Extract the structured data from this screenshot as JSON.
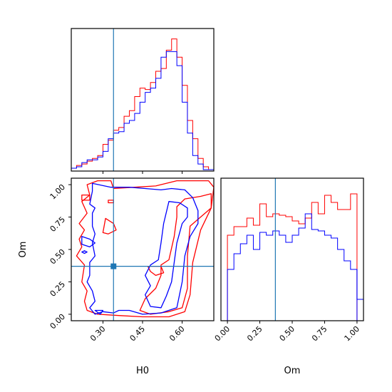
{
  "chart_data": [
    {
      "panel": "H0-marginal",
      "type": "histogram",
      "xlim": [
        0.18,
        0.72
      ],
      "bin_edges": [
        0.18,
        0.2,
        0.22,
        0.24,
        0.26,
        0.28,
        0.3,
        0.32,
        0.34,
        0.36,
        0.38,
        0.4,
        0.42,
        0.44,
        0.46,
        0.48,
        0.5,
        0.52,
        0.54,
        0.56,
        0.58,
        0.6,
        0.62,
        0.64,
        0.66,
        0.68,
        0.7,
        0.72
      ],
      "series": [
        {
          "color": "#ff0000",
          "values": [
            1,
            3,
            4,
            6,
            8,
            10,
            18,
            21,
            28,
            30,
            38,
            42,
            52,
            58,
            57,
            62,
            70,
            72,
            85,
            93,
            80,
            60,
            35,
            22,
            8,
            2,
            0
          ]
        },
        {
          "color": "#0000ff",
          "values": [
            1,
            2,
            5,
            7,
            7,
            9,
            13,
            22,
            26,
            27,
            33,
            35,
            40,
            48,
            55,
            58,
            65,
            80,
            84,
            84,
            74,
            48,
            26,
            10,
            4,
            0,
            0
          ]
        }
      ],
      "truth_line_x": 0.34,
      "truth_color": "#1f77b4",
      "x_ticks": [
        0.3,
        0.45,
        0.6
      ]
    },
    {
      "panel": "H0-Om-joint",
      "type": "contour",
      "xlim": [
        0.18,
        0.72
      ],
      "ylim": [
        -0.05,
        1.05
      ],
      "xlabel": "H0",
      "ylabel": "Om",
      "x_ticks": [
        "0.30",
        "0.45",
        "0.60"
      ],
      "y_ticks": [
        "0.00",
        "0.25",
        "0.50",
        "0.75",
        "1.00"
      ],
      "x_tick_values": [
        0.3,
        0.45,
        0.6
      ],
      "y_tick_values": [
        0,
        0.25,
        0.5,
        0.75,
        1.0
      ],
      "truth_point": [
        0.34,
        0.37
      ],
      "truth_color": "#1f77b4",
      "contours": [
        {
          "color": "#ff0000",
          "points": [
            [
              0.28,
              1.03
            ],
            [
              0.33,
              1.03
            ],
            [
              0.34,
              0.97
            ],
            [
              0.42,
              0.98
            ],
            [
              0.5,
              0.99
            ],
            [
              0.58,
              1.03
            ],
            [
              0.7,
              1.03
            ],
            [
              0.72,
              0.98
            ],
            [
              0.71,
              0.82
            ],
            [
              0.67,
              0.65
            ],
            [
              0.64,
              0.4
            ],
            [
              0.63,
              0.15
            ],
            [
              0.61,
              0.02
            ],
            [
              0.55,
              -0.02
            ],
            [
              0.45,
              -0.02
            ],
            [
              0.36,
              -0.01
            ],
            [
              0.28,
              0.0
            ],
            [
              0.24,
              0.03
            ],
            [
              0.23,
              0.1
            ],
            [
              0.24,
              0.18
            ],
            [
              0.22,
              0.25
            ],
            [
              0.23,
              0.38
            ],
            [
              0.2,
              0.45
            ],
            [
              0.22,
              0.52
            ],
            [
              0.21,
              0.58
            ],
            [
              0.23,
              0.65
            ],
            [
              0.21,
              0.7
            ],
            [
              0.24,
              0.78
            ],
            [
              0.22,
              0.87
            ],
            [
              0.25,
              0.92
            ],
            [
              0.24,
              1.0
            ],
            [
              0.28,
              1.03
            ]
          ]
        },
        {
          "color": "#ff0000",
          "points": [
            [
              0.58,
              0.83
            ],
            [
              0.61,
              0.89
            ],
            [
              0.67,
              0.91
            ],
            [
              0.71,
              0.93
            ],
            [
              0.71,
              0.82
            ],
            [
              0.67,
              0.75
            ],
            [
              0.63,
              0.68
            ],
            [
              0.62,
              0.45
            ],
            [
              0.62,
              0.2
            ],
            [
              0.6,
              0.05
            ],
            [
              0.55,
              0.02
            ],
            [
              0.48,
              0.0
            ],
            [
              0.44,
              0.03
            ],
            [
              0.46,
              0.12
            ],
            [
              0.5,
              0.2
            ],
            [
              0.52,
              0.3
            ],
            [
              0.52,
              0.38
            ],
            [
              0.55,
              0.42
            ],
            [
              0.57,
              0.6
            ],
            [
              0.58,
              0.75
            ],
            [
              0.58,
              0.83
            ]
          ]
        },
        {
          "color": "#ff0000",
          "points": [
            [
              0.31,
              0.74
            ],
            [
              0.34,
              0.7
            ],
            [
              0.35,
              0.65
            ],
            [
              0.32,
              0.62
            ],
            [
              0.3,
              0.63
            ],
            [
              0.31,
              0.74
            ]
          ]
        },
        {
          "color": "#ff0000",
          "points": [
            [
              0.22,
              0.92
            ],
            [
              0.25,
              0.92
            ],
            [
              0.25,
              0.88
            ],
            [
              0.22,
              0.88
            ],
            [
              0.22,
              0.92
            ]
          ]
        },
        {
          "color": "#ff0000",
          "points": [
            [
              0.32,
              0.88
            ],
            [
              0.34,
              0.88
            ],
            [
              0.34,
              0.86
            ],
            [
              0.32,
              0.86
            ],
            [
              0.32,
              0.88
            ]
          ]
        },
        {
          "color": "#ff0000",
          "points": [
            [
              0.47,
              0.37
            ],
            [
              0.52,
              0.37
            ],
            [
              0.53,
              0.32
            ],
            [
              0.5,
              0.3
            ],
            [
              0.48,
              0.33
            ],
            [
              0.47,
              0.37
            ]
          ]
        },
        {
          "color": "#0000ff",
          "points": [
            [
              0.26,
              1.01
            ],
            [
              0.33,
              0.98
            ],
            [
              0.4,
              0.98
            ],
            [
              0.46,
              0.97
            ],
            [
              0.52,
              0.96
            ],
            [
              0.56,
              0.97
            ],
            [
              0.61,
              0.96
            ],
            [
              0.64,
              0.9
            ],
            [
              0.66,
              0.8
            ],
            [
              0.66,
              0.7
            ],
            [
              0.63,
              0.6
            ],
            [
              0.61,
              0.45
            ],
            [
              0.6,
              0.25
            ],
            [
              0.58,
              0.05
            ],
            [
              0.52,
              0.01
            ],
            [
              0.45,
              0.0
            ],
            [
              0.4,
              0.03
            ],
            [
              0.36,
              0.03
            ],
            [
              0.34,
              0.01
            ],
            [
              0.3,
              0.02
            ],
            [
              0.27,
              0.0
            ],
            [
              0.25,
              0.05
            ],
            [
              0.27,
              0.1
            ],
            [
              0.26,
              0.18
            ],
            [
              0.24,
              0.25
            ],
            [
              0.25,
              0.3
            ],
            [
              0.25,
              0.4
            ],
            [
              0.27,
              0.45
            ],
            [
              0.26,
              0.55
            ],
            [
              0.27,
              0.62
            ],
            [
              0.26,
              0.68
            ],
            [
              0.26,
              0.78
            ],
            [
              0.27,
              0.82
            ],
            [
              0.25,
              0.85
            ],
            [
              0.26,
              0.95
            ],
            [
              0.26,
              1.01
            ]
          ]
        },
        {
          "color": "#0000ff",
          "points": [
            [
              0.55,
              0.87
            ],
            [
              0.59,
              0.86
            ],
            [
              0.62,
              0.82
            ],
            [
              0.62,
              0.75
            ],
            [
              0.6,
              0.7
            ],
            [
              0.58,
              0.55
            ],
            [
              0.57,
              0.4
            ],
            [
              0.56,
              0.25
            ],
            [
              0.54,
              0.14
            ],
            [
              0.52,
              0.05
            ],
            [
              0.48,
              0.06
            ],
            [
              0.46,
              0.15
            ],
            [
              0.48,
              0.22
            ],
            [
              0.46,
              0.3
            ],
            [
              0.48,
              0.38
            ],
            [
              0.51,
              0.42
            ],
            [
              0.52,
              0.55
            ],
            [
              0.53,
              0.7
            ],
            [
              0.55,
              0.87
            ]
          ]
        },
        {
          "color": "#0000ff",
          "points": [
            [
              0.22,
              0.6
            ],
            [
              0.25,
              0.58
            ],
            [
              0.27,
              0.55
            ],
            [
              0.25,
              0.52
            ],
            [
              0.22,
              0.54
            ],
            [
              0.22,
              0.6
            ]
          ]
        },
        {
          "color": "#0000ff",
          "points": [
            [
              0.23,
              0.49
            ],
            [
              0.24,
              0.48
            ],
            [
              0.23,
              0.47
            ],
            [
              0.22,
              0.48
            ],
            [
              0.23,
              0.49
            ]
          ]
        },
        {
          "color": "#0000ff",
          "points": [
            [
              0.27,
              0.03
            ],
            [
              0.3,
              0.03
            ],
            [
              0.29,
              0.0
            ],
            [
              0.27,
              0.03
            ]
          ]
        }
      ]
    },
    {
      "panel": "Om-marginal",
      "type": "histogram",
      "xlabel": "Om",
      "xlim": [
        -0.05,
        1.05
      ],
      "x_ticks": [
        "0.00",
        "0.25",
        "0.50",
        "0.75",
        "1.00"
      ],
      "x_tick_values": [
        0,
        0.25,
        0.5,
        0.75,
        1.0
      ],
      "bin_edges": [
        0.0,
        0.05,
        0.1,
        0.15,
        0.2,
        0.25,
        0.3,
        0.35,
        0.4,
        0.45,
        0.5,
        0.55,
        0.6,
        0.65,
        0.7,
        0.75,
        0.8,
        0.85,
        0.9,
        0.95,
        1.0
      ],
      "series": [
        {
          "color": "#ff0000",
          "values": [
            60,
            66,
            66,
            72,
            67,
            82,
            73,
            75,
            74,
            73,
            70,
            68,
            72,
            83,
            75,
            88,
            83,
            78,
            78,
            89
          ]
        },
        {
          "color": "#0000ff",
          "values": [
            36,
            47,
            54,
            60,
            50,
            62,
            60,
            63,
            60,
            55,
            60,
            65,
            75,
            64,
            63,
            60,
            58,
            50,
            42,
            36
          ]
        }
      ],
      "truth_line_x": 0.37,
      "truth_color": "#1f77b4"
    }
  ]
}
